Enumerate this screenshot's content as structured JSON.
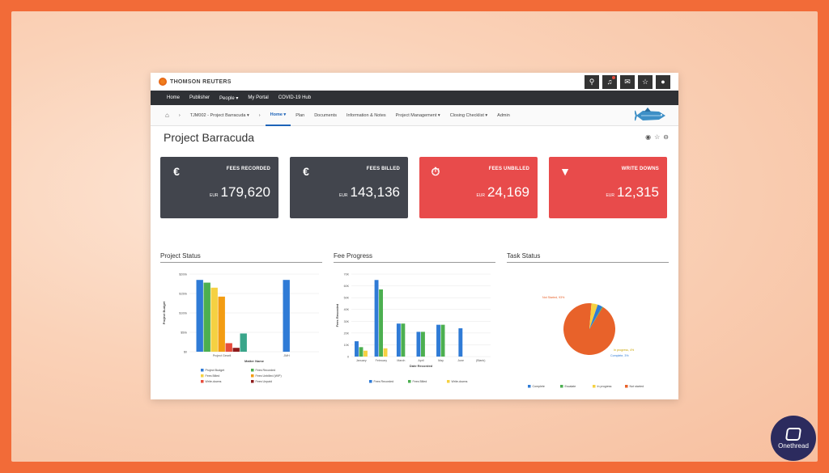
{
  "brand": {
    "logo_text": "THOMSON REUTERS",
    "watermark": "Onethread"
  },
  "top_icons": [
    "search-icon",
    "bell-icon",
    "mail-icon",
    "star-icon",
    "user-icon"
  ],
  "nav": [
    "Home",
    "Publisher",
    "People ▾",
    "My Portal",
    "COVID-19 Hub"
  ],
  "breadcrumb": {
    "project": "TJM002 - Project Barracuda ▾",
    "tabs": [
      "Home ▾",
      "Plan",
      "Documents",
      "Information & Notes",
      "Project Management ▾",
      "Closing Checklist ▾",
      "Admin"
    ]
  },
  "page_title": "Project Barracuda",
  "cards": [
    {
      "label": "FEES RECORDED",
      "currency": "EUR",
      "value": "179,620",
      "style": "dark",
      "icon": "money-bag-icon"
    },
    {
      "label": "FEES BILLED",
      "currency": "EUR",
      "value": "143,136",
      "style": "dark",
      "icon": "hand-money-icon"
    },
    {
      "label": "FEES UNBILLED",
      "currency": "EUR",
      "value": "24,169",
      "style": "red",
      "icon": "stopwatch-icon"
    },
    {
      "label": "WRITE DOWNS",
      "currency": "EUR",
      "value": "12,315",
      "style": "red",
      "icon": "board-down-icon"
    }
  ],
  "panels": {
    "project_status": "Project Status",
    "fee_progress": "Fee Progress",
    "task_status": "Task Status"
  },
  "colors": {
    "blue": "#2f7bd6",
    "green": "#4caf50",
    "yellow": "#f5d142",
    "orange": "#f39c12",
    "red": "#e74c3c",
    "darkred": "#8e1b1b",
    "teal": "#3aa58a",
    "pie_orange": "#e8622a"
  },
  "chart_data": [
    {
      "type": "bar",
      "title": "Project Status",
      "xlabel": "Matter Name",
      "ylabel": "Project Budget",
      "categories": [
        "Project Gesell",
        "JMH"
      ],
      "ylim": [
        0,
        200000
      ],
      "yticks": [
        "$0",
        "$50k",
        "$100k",
        "$150k",
        "$200k"
      ],
      "series": [
        {
          "name": "Project Budget",
          "values": [
            185000,
            185000
          ],
          "color": "#2f7bd6"
        },
        {
          "name": "Fees Recorded",
          "values": [
            178000,
            0
          ],
          "color": "#4caf50"
        },
        {
          "name": "Fees Billed",
          "values": [
            165000,
            0
          ],
          "color": "#f5d142"
        },
        {
          "name": "Fees Unbilled (WIP)",
          "values": [
            142000,
            0
          ],
          "color": "#f39c12"
        },
        {
          "name": "Write-downs",
          "values": [
            22000,
            0
          ],
          "color": "#e74c3c"
        },
        {
          "name": "Fees Unpaid",
          "values": [
            10000,
            0
          ],
          "color": "#8e1b1b"
        },
        {
          "name": "",
          "values": [
            47000,
            0
          ],
          "color": "#3aa58a"
        }
      ],
      "legend": [
        "Project Budget",
        "Fees Recorded",
        "Fees Billed",
        "Fees Unbilled (WIP)",
        "Write-downs",
        "Fees Unpaid"
      ],
      "legend_placement": "bottom"
    },
    {
      "type": "bar",
      "title": "Fee Progress",
      "xlabel": "Date Recorded",
      "ylabel": "Fees Recorded",
      "categories": [
        "January",
        "February",
        "March",
        "April",
        "May",
        "June",
        "(Blank)"
      ],
      "ylim": [
        0,
        70000
      ],
      "yticks": [
        "0",
        "10K",
        "20K",
        "30K",
        "40K",
        "50K",
        "60K",
        "70K"
      ],
      "series": [
        {
          "name": "Fees Recorded",
          "values": [
            13000,
            65000,
            28000,
            21000,
            27000,
            24000,
            0
          ],
          "color": "#2f7bd6"
        },
        {
          "name": "Fees Billed",
          "values": [
            8000,
            57000,
            28000,
            21000,
            27000,
            0,
            0
          ],
          "color": "#4caf50"
        },
        {
          "name": "Write-downs",
          "values": [
            5000,
            7000,
            0,
            0,
            0,
            0,
            0
          ],
          "color": "#f5d142"
        }
      ],
      "legend_placement": "bottom"
    },
    {
      "type": "pie",
      "title": "Task Status",
      "slices": [
        {
          "name": "Not started",
          "value": 93,
          "color": "#e8622a"
        },
        {
          "name": "In progress",
          "value": 4,
          "color": "#f5d142"
        },
        {
          "name": "Complete",
          "value": 3,
          "color": "#2f7bd6"
        },
        {
          "name": "Escalate",
          "value": 0.5,
          "color": "#4caf50"
        }
      ],
      "labels": [
        "Not Started, 93%",
        "In progress, 4%",
        "Complete, 3%"
      ],
      "legend": [
        "Complete",
        "Escalate",
        "In progress",
        "Not started"
      ],
      "legend_placement": "bottom"
    }
  ]
}
